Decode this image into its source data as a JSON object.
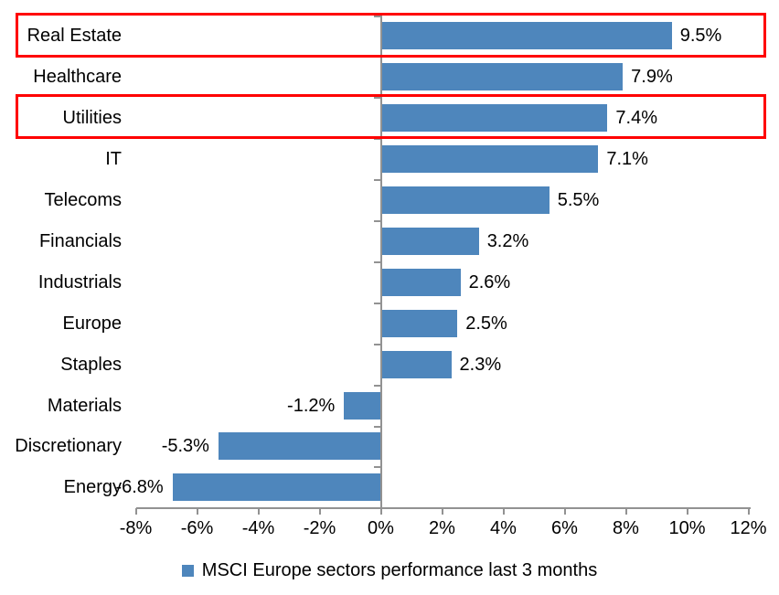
{
  "chart_data": {
    "type": "bar",
    "orientation": "horizontal",
    "categories": [
      "Real Estate",
      "Healthcare",
      "Utilities",
      "IT",
      "Telecoms",
      "Financials",
      "Industrials",
      "Europe",
      "Staples",
      "Materials",
      "Discretionary",
      "Energy"
    ],
    "values": [
      9.5,
      7.9,
      7.4,
      7.1,
      5.5,
      3.2,
      2.6,
      2.5,
      2.3,
      -1.2,
      -5.3,
      -6.8
    ],
    "data_labels": [
      "9.5%",
      "7.9%",
      "7.4%",
      "7.1%",
      "5.5%",
      "3.2%",
      "2.6%",
      "2.5%",
      "2.3%",
      "-1.2%",
      "-5.3%",
      "-6.8%"
    ],
    "x_axis": {
      "tick_values": [
        -8,
        -6,
        -4,
        -2,
        0,
        2,
        4,
        6,
        8,
        10,
        12
      ],
      "tick_labels": [
        "-8%",
        "-6%",
        "-4%",
        "-2%",
        "0%",
        "2%",
        "4%",
        "6%",
        "8%",
        "10%",
        "12%"
      ],
      "min": -8,
      "max": 12
    },
    "grid": false,
    "legend": {
      "label": "MSCI Europe sectors performance last 3 months",
      "position": "bottom"
    },
    "highlighted_rows": [
      "Real Estate",
      "Utilities"
    ],
    "colors": {
      "bar": "#4E86BC",
      "axis": "#929292",
      "highlight_box": "#FF0000",
      "text": "#000000",
      "background": "#FFFFFF"
    }
  }
}
